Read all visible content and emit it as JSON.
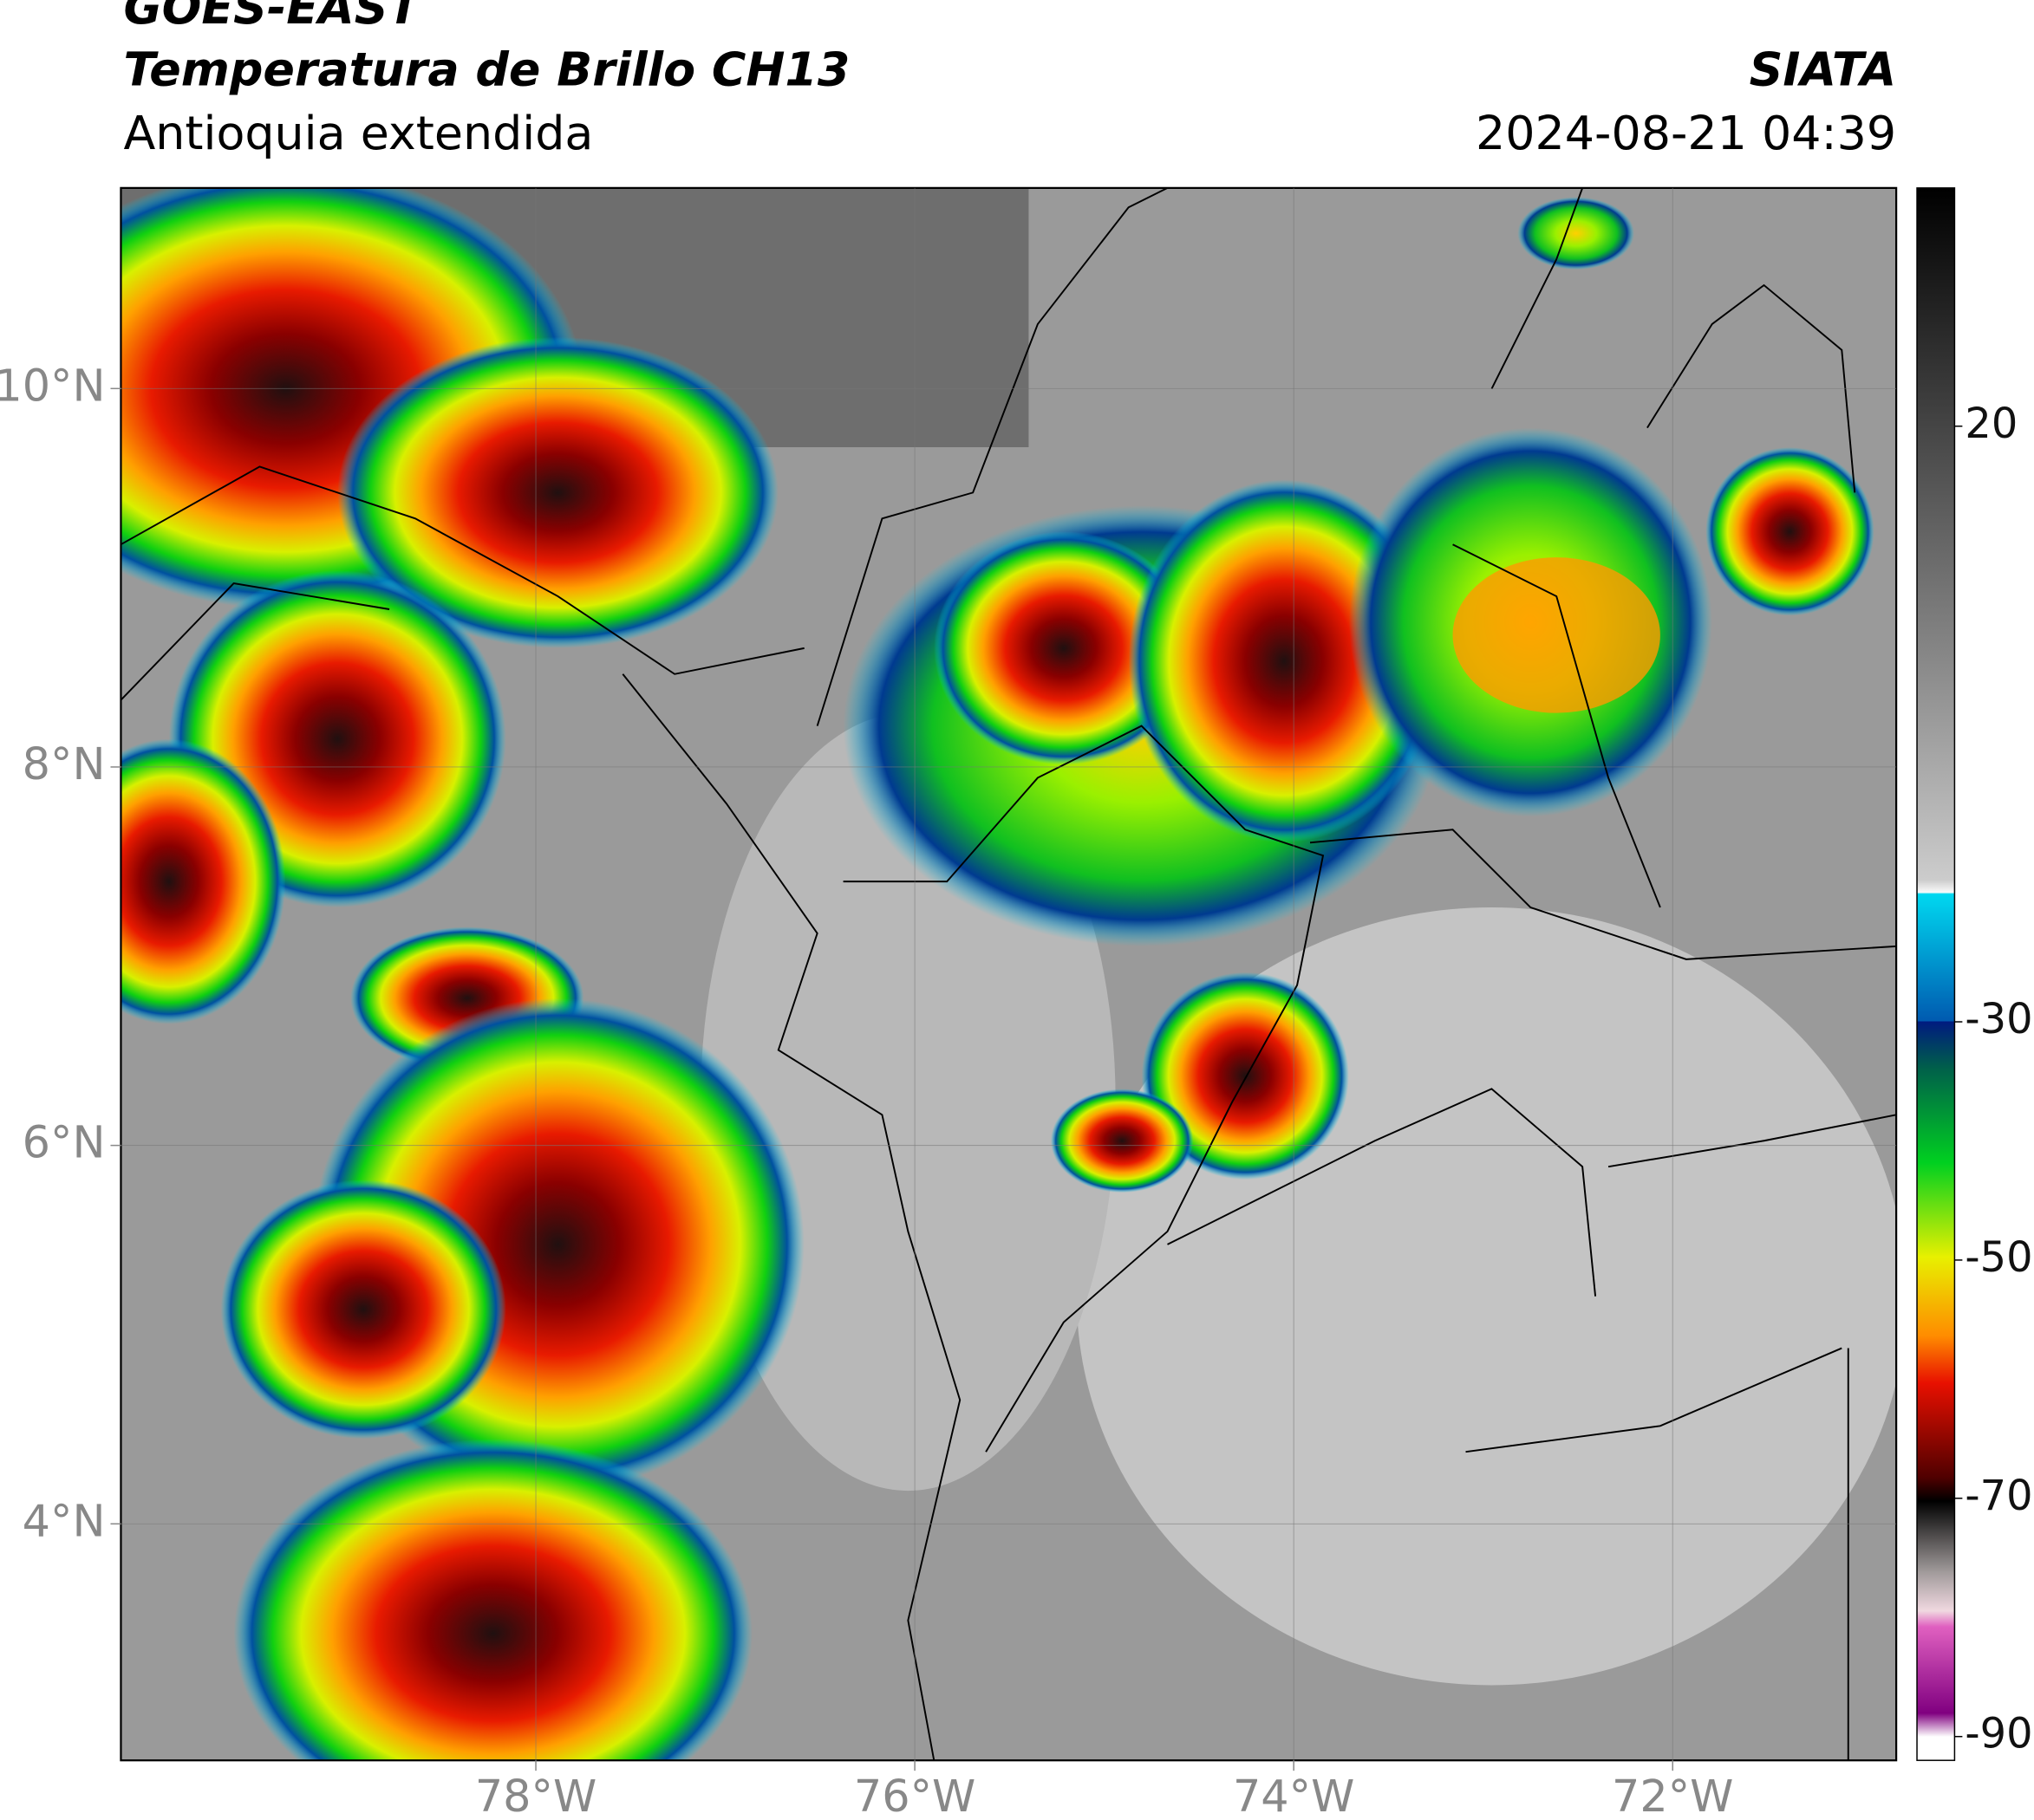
{
  "header": {
    "satellite": "GOES-EAST",
    "product": "Temperatura de Brillo CH13",
    "region": "Antioquia extendida",
    "source": "SIATA",
    "datetime": "2024-08-21 04:39"
  },
  "map": {
    "xlim": [
      -80.19,
      -70.82
    ],
    "ylim": [
      2.75,
      11.06
    ],
    "xticks": [
      {
        "value": -78,
        "label": "78°W"
      },
      {
        "value": -76,
        "label": "76°W"
      },
      {
        "value": -74,
        "label": "74°W"
      },
      {
        "value": -72,
        "label": "72°W"
      }
    ],
    "yticks": [
      {
        "value": 4,
        "label": "4°N"
      },
      {
        "value": 6,
        "label": "6°N"
      },
      {
        "value": 8,
        "label": "8°N"
      },
      {
        "value": 10,
        "label": "10°N"
      }
    ],
    "grid": true
  },
  "colorbar": {
    "lim": [
      -92,
      40
    ],
    "ticks": [
      20,
      -30,
      -50,
      -70,
      -90
    ]
  }
}
